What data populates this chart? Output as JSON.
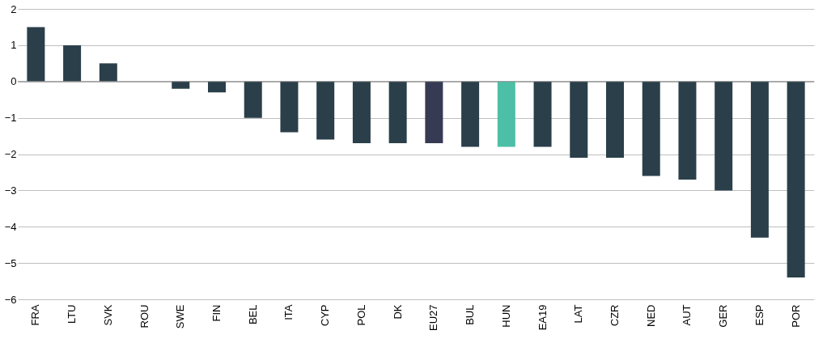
{
  "chart_data": {
    "type": "bar",
    "categories": [
      "FRA",
      "LTU",
      "SVK",
      "ROU",
      "SWE",
      "FIN",
      "BEL",
      "ITA",
      "CYP",
      "POL",
      "DK",
      "EU27",
      "BUL",
      "HUN",
      "EA19",
      "LAT",
      "CZR",
      "NED",
      "AUT",
      "GER",
      "ESP",
      "POR"
    ],
    "values": [
      1.5,
      1.0,
      0.5,
      0,
      -0.2,
      -0.3,
      -1.0,
      -1.4,
      -1.6,
      -1.7,
      -1.7,
      -1.7,
      -1.8,
      -1.8,
      -1.8,
      -2.1,
      -2.1,
      -2.6,
      -2.7,
      -3.0,
      -4.3,
      -5.4
    ],
    "colors": [
      "#2a3f4a",
      "#2a3f4a",
      "#2a3f4a",
      "#2a3f4a",
      "#2a3f4a",
      "#2a3f4a",
      "#2a3f4a",
      "#2a3f4a",
      "#2a3f4a",
      "#2a3f4a",
      "#2a3f4a",
      "#363a53",
      "#2a3f4a",
      "#4cbfa6",
      "#2a3f4a",
      "#2a3f4a",
      "#2a3f4a",
      "#2a3f4a",
      "#2a3f4a",
      "#2a3f4a",
      "#2a3f4a",
      "#2a3f4a"
    ],
    "ylim": [
      -6,
      2
    ],
    "yticks": [
      -6,
      -5,
      -4,
      -3,
      -2,
      -1,
      0,
      1,
      2
    ],
    "grid": "y"
  }
}
